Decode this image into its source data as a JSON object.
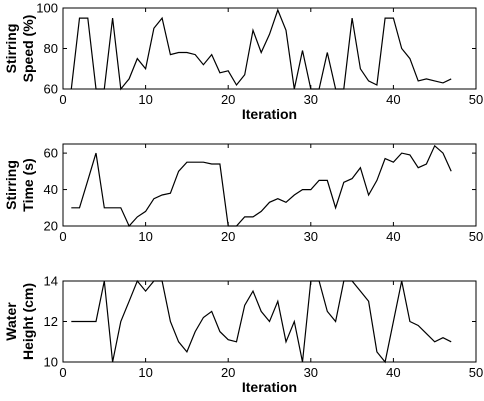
{
  "chart_data": [
    {
      "type": "line",
      "xlabel": "Iteration",
      "ylabel": [
        "Stirring",
        "Speed (%)"
      ],
      "xlim": [
        0,
        50
      ],
      "ylim": [
        60,
        100
      ],
      "xticks": [
        "0",
        "10",
        "20",
        "30",
        "40",
        "50"
      ],
      "yticks": [
        "60",
        "80",
        "100"
      ],
      "x": [
        1,
        2,
        3,
        4,
        5,
        6,
        7,
        8,
        9,
        10,
        11,
        12,
        13,
        14,
        15,
        16,
        17,
        18,
        19,
        20,
        21,
        22,
        23,
        24,
        25,
        26,
        27,
        28,
        29,
        30,
        31,
        32,
        33,
        34,
        35,
        36,
        37,
        38,
        39,
        40,
        41,
        42,
        43,
        44,
        45,
        46,
        47
      ],
      "y": [
        60,
        95,
        95,
        60,
        60,
        95,
        60,
        65,
        75,
        70,
        90,
        95,
        77,
        78,
        78,
        77,
        72,
        77,
        68,
        69,
        62,
        67,
        89,
        78,
        87,
        99,
        89,
        60,
        79,
        60,
        60,
        78,
        60,
        60,
        95,
        70,
        64,
        62,
        95,
        95,
        80,
        75,
        64,
        65,
        64,
        63,
        65
      ]
    },
    {
      "type": "line",
      "xlabel": "",
      "ylabel": [
        "Stirring",
        "Time (s)"
      ],
      "xlim": [
        0,
        50
      ],
      "ylim": [
        20,
        65
      ],
      "xticks": [
        "0",
        "10",
        "20",
        "30",
        "40",
        "50"
      ],
      "yticks": [
        "20",
        "40",
        "60"
      ],
      "x": [
        1,
        2,
        3,
        4,
        5,
        6,
        7,
        8,
        9,
        10,
        11,
        12,
        13,
        14,
        15,
        16,
        17,
        18,
        19,
        20,
        21,
        22,
        23,
        24,
        25,
        26,
        27,
        28,
        29,
        30,
        31,
        32,
        33,
        34,
        35,
        36,
        37,
        38,
        39,
        40,
        41,
        42,
        43,
        44,
        45,
        46,
        47
      ],
      "y": [
        30,
        30,
        45,
        60,
        30,
        30,
        30,
        20,
        25,
        28,
        35,
        37,
        38,
        50,
        55,
        55,
        55,
        54,
        54,
        20,
        20,
        25,
        25,
        28,
        33,
        35,
        33,
        37,
        40,
        40,
        45,
        45,
        30,
        44,
        46,
        52,
        37,
        45,
        57,
        55,
        60,
        59,
        52,
        54,
        64,
        60,
        50
      ]
    },
    {
      "type": "line",
      "xlabel": "Iteration",
      "ylabel": [
        "Water",
        "Height (cm)"
      ],
      "xlim": [
        0,
        50
      ],
      "ylim": [
        10,
        14
      ],
      "xticks": [
        "0",
        "10",
        "20",
        "30",
        "40",
        "50"
      ],
      "yticks": [
        "10",
        "12",
        "14"
      ],
      "x": [
        1,
        2,
        3,
        4,
        5,
        6,
        7,
        8,
        9,
        10,
        11,
        12,
        13,
        14,
        15,
        16,
        17,
        18,
        19,
        20,
        21,
        22,
        23,
        24,
        25,
        26,
        27,
        28,
        29,
        30,
        31,
        32,
        33,
        34,
        35,
        36,
        37,
        38,
        39,
        40,
        41,
        42,
        43,
        44,
        45,
        46,
        47
      ],
      "y": [
        12,
        12,
        12,
        12,
        14,
        10,
        12,
        13,
        14,
        13.5,
        14,
        14,
        12,
        11,
        10.5,
        11.5,
        12.2,
        12.5,
        11.5,
        11.1,
        11,
        12.8,
        13.5,
        12.5,
        12,
        13,
        11,
        12,
        10,
        14,
        14,
        12.5,
        12,
        14,
        14,
        13.5,
        13,
        10.5,
        10,
        12,
        14,
        12,
        11.8,
        11.4,
        11,
        11.2,
        11
      ]
    }
  ]
}
